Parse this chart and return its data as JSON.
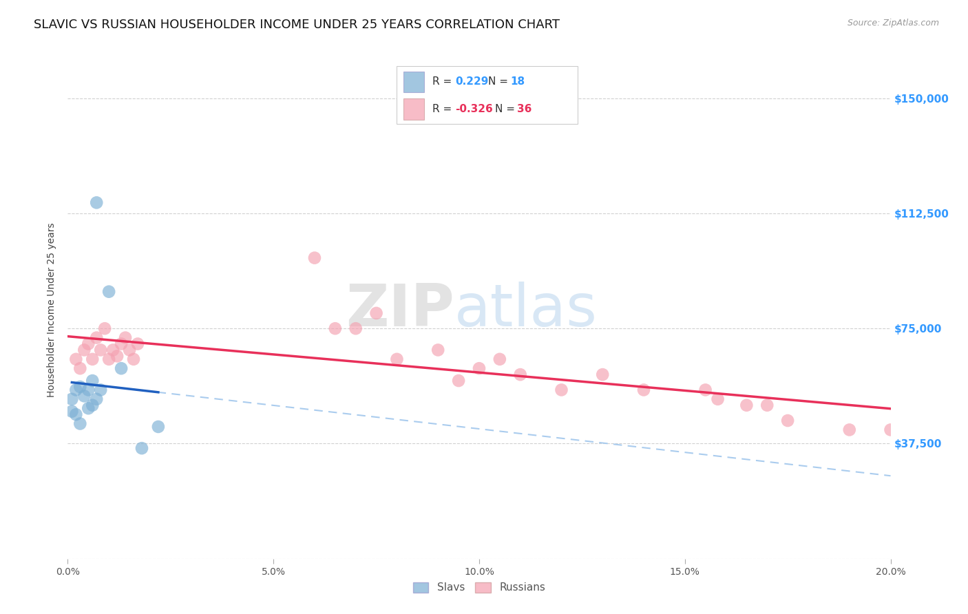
{
  "title": "SLAVIC VS RUSSIAN HOUSEHOLDER INCOME UNDER 25 YEARS CORRELATION CHART",
  "source": "Source: ZipAtlas.com",
  "ylabel": "Householder Income Under 25 years",
  "slav_color": "#7bafd4",
  "russian_color": "#f4a0b0",
  "slav_line_color": "#2060c0",
  "russian_line_color": "#e8305a",
  "slav_dashed_color": "#aaccee",
  "R_slav": 0.229,
  "N_slav": 18,
  "R_russian": -0.326,
  "N_russian": 36,
  "watermark_zip": "ZIP",
  "watermark_atlas": "atlas",
  "background_color": "#ffffff",
  "title_fontsize": 13,
  "axis_label_fontsize": 10,
  "legend_fontsize": 11,
  "slavs_x": [
    0.001,
    0.001,
    0.002,
    0.002,
    0.003,
    0.003,
    0.004,
    0.004,
    0.005,
    0.005,
    0.006,
    0.007,
    0.008,
    0.01,
    0.012,
    0.015,
    0.018,
    0.022
  ],
  "slavs_y": [
    55000,
    50000,
    52000,
    48000,
    56000,
    45000,
    53000,
    47000,
    55000,
    50000,
    60000,
    115000,
    55000,
    85000,
    58000,
    62000,
    36000,
    43000
  ],
  "russians_x": [
    0.002,
    0.003,
    0.004,
    0.005,
    0.006,
    0.007,
    0.008,
    0.009,
    0.01,
    0.011,
    0.012,
    0.013,
    0.014,
    0.015,
    0.016,
    0.017,
    0.06,
    0.065,
    0.07,
    0.075,
    0.08,
    0.09,
    0.095,
    0.1,
    0.11,
    0.12,
    0.13,
    0.14,
    0.155,
    0.158,
    0.165,
    0.17,
    0.175,
    0.19,
    0.2,
    0.105
  ],
  "russians_y": [
    65000,
    62000,
    68000,
    70000,
    65000,
    72000,
    68000,
    75000,
    65000,
    68000,
    66000,
    70000,
    72000,
    68000,
    65000,
    70000,
    98000,
    75000,
    75000,
    80000,
    65000,
    68000,
    58000,
    62000,
    60000,
    55000,
    60000,
    55000,
    55000,
    52000,
    50000,
    50000,
    45000,
    42000,
    42000,
    65000
  ],
  "ylim_max": 162000,
  "yticks": [
    0,
    37500,
    75000,
    112500,
    150000
  ],
  "ylabel_labels": [
    "",
    "$37,500",
    "$75,000",
    "$112,500",
    "$150,000"
  ],
  "xticks": [
    0.0,
    0.05,
    0.1,
    0.15,
    0.2
  ],
  "xlabel_labels": [
    "0.0%",
    "5.0%",
    "10.0%",
    "15.0%",
    "20.0%"
  ]
}
